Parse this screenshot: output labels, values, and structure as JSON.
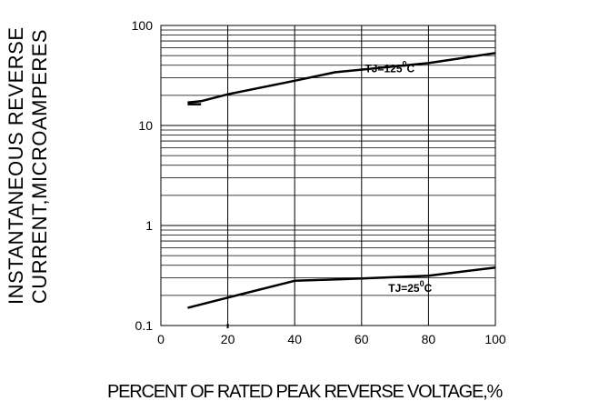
{
  "chart_data": {
    "type": "line",
    "xlabel": "PERCENT  OF  RATED PEAK REVERSE VOLTAGE,%",
    "ylabel_line1": "INSTANTANEOUS REVERSE",
    "ylabel_line2": "CURRENT,MICROAMPERES",
    "x_ticks": [
      "0",
      "20",
      "40",
      "60",
      "80",
      "100"
    ],
    "y_ticks": [
      "0.1",
      "1",
      "10",
      "100"
    ],
    "xlim": [
      0,
      100
    ],
    "ylim": [
      0.1,
      100
    ],
    "y_scale": "log",
    "grid": true,
    "series": [
      {
        "name": "TJ=125°C",
        "label_main": "TJ=125",
        "label_sup": "0",
        "label_unit": "C",
        "x": [
          8,
          12,
          20,
          40,
          52,
          80,
          100
        ],
        "y": [
          17,
          17.5,
          20.5,
          28,
          34,
          42,
          53
        ]
      },
      {
        "name": "TJ=25°C",
        "label_main": "TJ=25",
        "label_sup": "0",
        "label_unit": "C",
        "x": [
          8,
          20,
          40,
          60,
          80,
          100
        ],
        "y": [
          0.15,
          0.19,
          0.28,
          0.295,
          0.315,
          0.38
        ]
      }
    ]
  }
}
